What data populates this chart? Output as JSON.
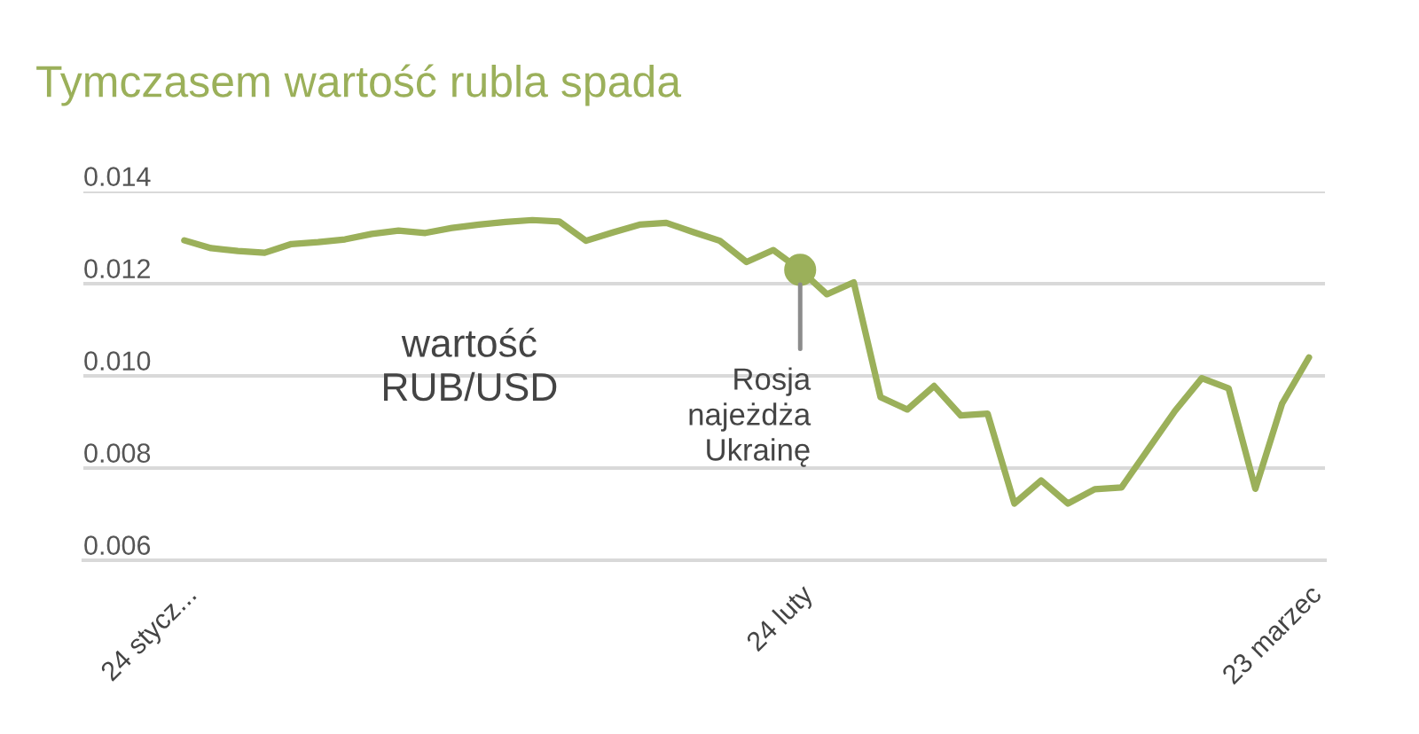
{
  "chart_data": {
    "type": "line",
    "title": "Tymczasem wartość rubla spada",
    "categories": [
      "24 stycz...",
      null,
      null,
      null,
      null,
      null,
      null,
      null,
      null,
      null,
      null,
      null,
      null,
      null,
      null,
      null,
      null,
      null,
      null,
      null,
      null,
      null,
      null,
      "24 luty",
      null,
      null,
      null,
      null,
      null,
      null,
      null,
      null,
      null,
      null,
      null,
      null,
      null,
      null,
      null,
      null,
      null,
      null,
      "23 marzec"
    ],
    "series": [
      {
        "color": "#9bb05a",
        "values": [
          0.01294,
          0.01277,
          0.01271,
          0.01267,
          0.01286,
          0.0129,
          0.01296,
          0.01308,
          0.01315,
          0.0131,
          0.01321,
          0.01328,
          0.01334,
          0.01338,
          0.01335,
          0.01293,
          0.01311,
          0.01328,
          0.01332,
          0.01312,
          0.01293,
          0.01247,
          0.01273,
          0.0123,
          0.01177,
          0.01203,
          0.00954,
          0.00927,
          0.00978,
          0.00914,
          0.00918,
          0.00723,
          0.00773,
          0.00723,
          0.00754,
          0.00758,
          0.00841,
          0.00924,
          0.00995,
          0.00973,
          0.00755,
          0.0094,
          0.0104
        ]
      }
    ],
    "ylim": [
      0.006,
      0.014
    ],
    "yticks": [
      0.006,
      0.008,
      {
        "value": 0.01,
        "label": "0.010"
      },
      0.012,
      0.014
    ],
    "grid": "y",
    "annotations": [
      "wartość\nRUB/USD",
      {
        "text": "Rosja\nnajeżdża\nUkrainę",
        "x": "24 luty",
        "y": 0.0123
      }
    ]
  }
}
